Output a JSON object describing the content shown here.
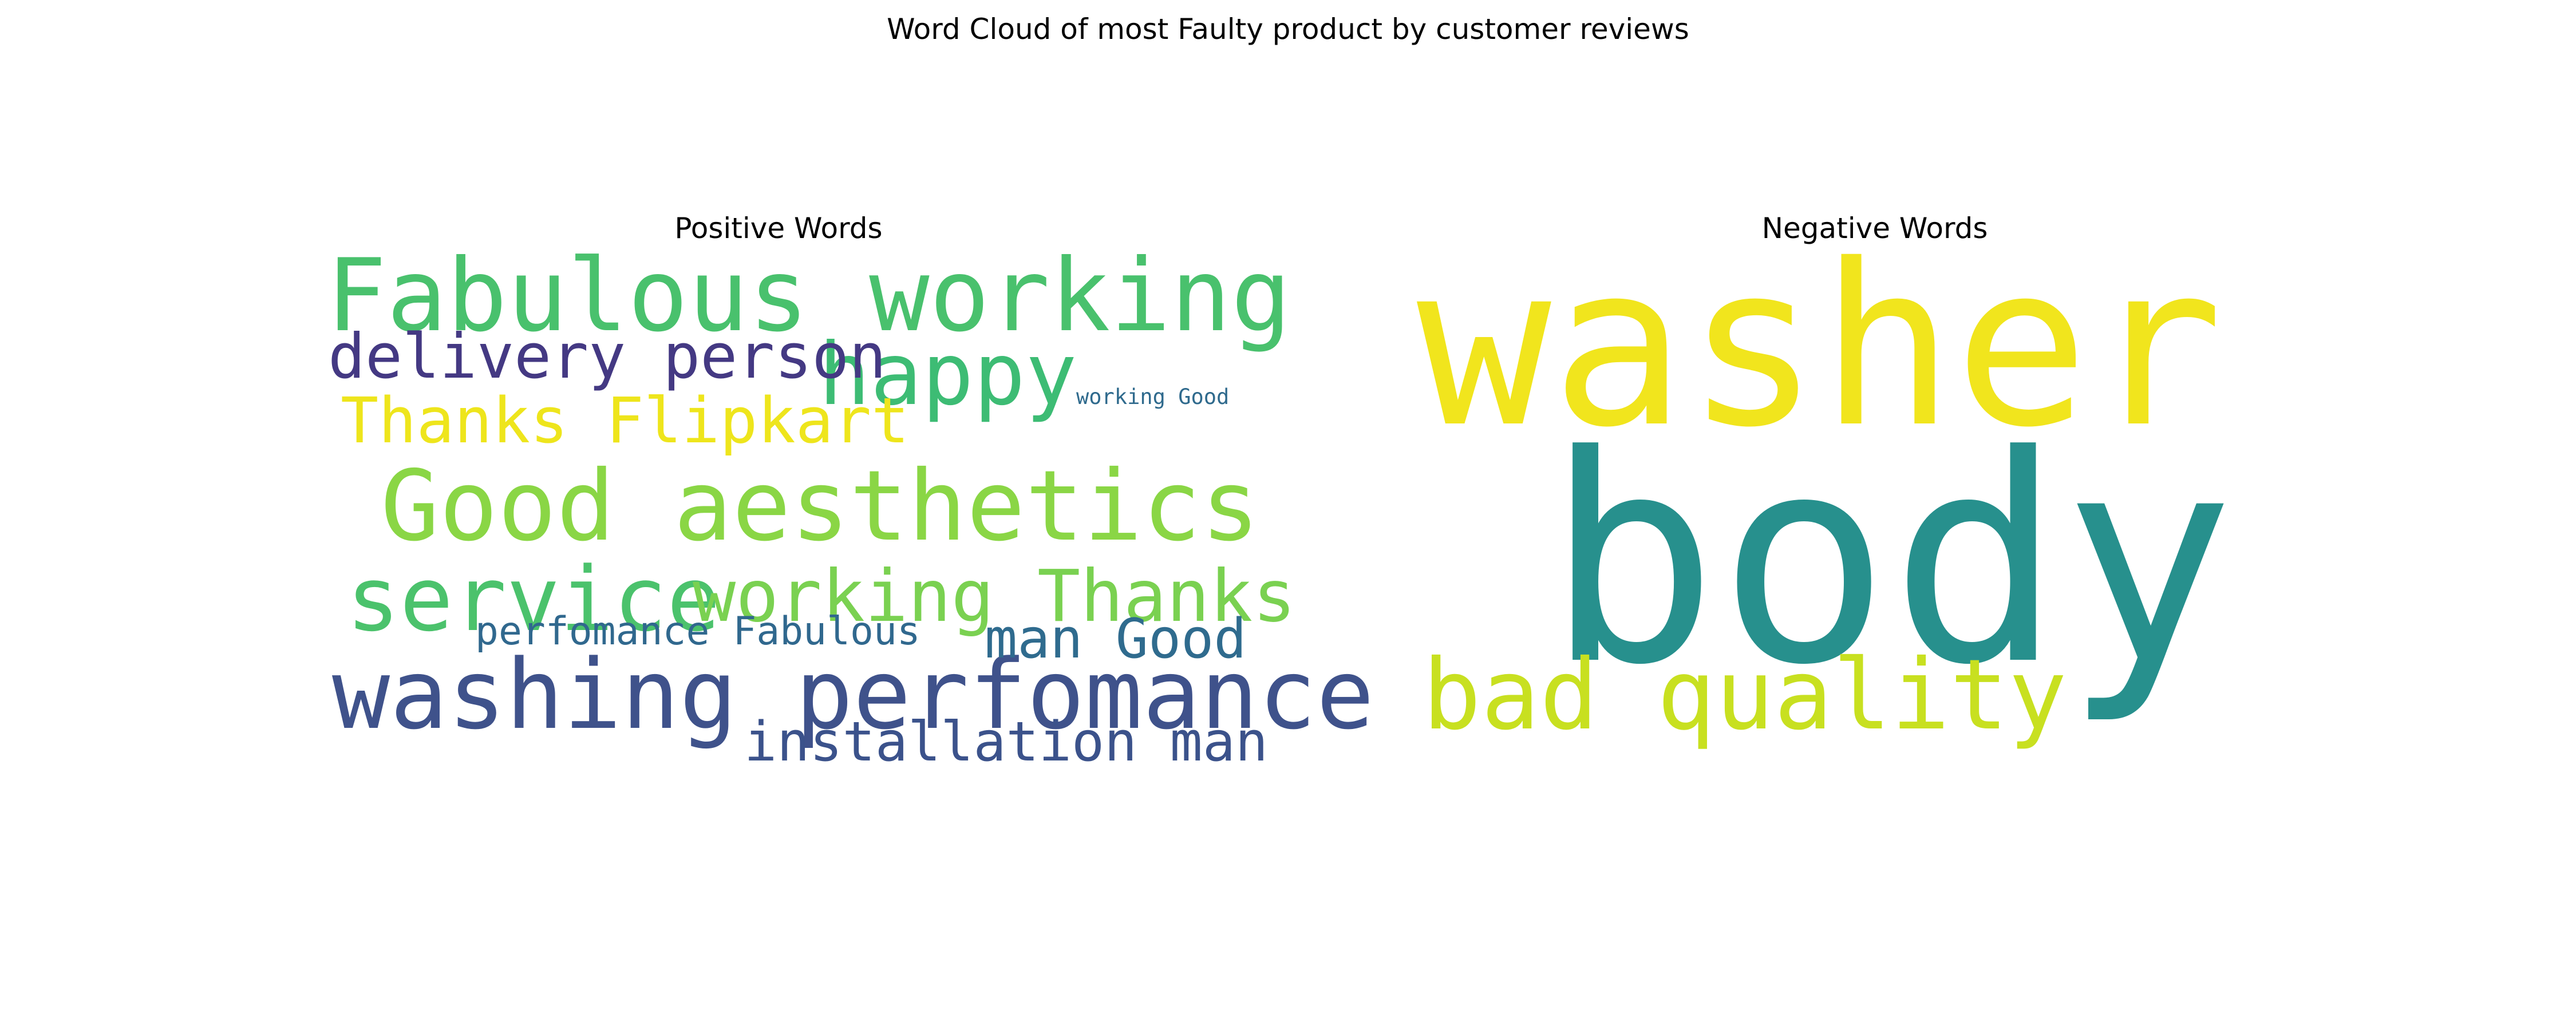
{
  "figure": {
    "title": "Word Cloud of most Faulty product by customer reviews"
  },
  "chart_data": [
    {
      "type": "wordcloud",
      "title": "Positive Words",
      "words": [
        {
          "text": "Fabulous working",
          "color": "#49c16d",
          "weight": 1.0
        },
        {
          "text": "Good aesthetics",
          "color": "#8ad645",
          "weight": 0.98
        },
        {
          "text": "washing perfomance",
          "color": "#3f528b",
          "weight": 0.96
        },
        {
          "text": "service",
          "color": "#4bc26c",
          "weight": 0.9
        },
        {
          "text": "happy",
          "color": "#3dbc74",
          "weight": 0.88
        },
        {
          "text": "working Thanks",
          "color": "#7ad151",
          "weight": 0.74
        },
        {
          "text": "Thanks Flipkart",
          "color": "#eee51c",
          "weight": 0.64
        },
        {
          "text": "delivery person",
          "color": "#443983",
          "weight": 0.64
        },
        {
          "text": "installation man",
          "color": "#3b528b",
          "weight": 0.58
        },
        {
          "text": "man Good",
          "color": "#2f6b8e",
          "weight": 0.58
        },
        {
          "text": "perfomance Fabulous",
          "color": "#30688e",
          "weight": 0.44
        },
        {
          "text": "working Good",
          "color": "#2f6a8d",
          "weight": 0.24
        }
      ]
    },
    {
      "type": "wordcloud",
      "title": "Negative Words",
      "words": [
        {
          "text": "washer",
          "color": "#f1e51d",
          "weight": 1.0
        },
        {
          "text": "body",
          "color": "#27908d",
          "weight": 1.0
        },
        {
          "text": "bad quality",
          "color": "#c8e020",
          "weight": 0.58
        }
      ]
    }
  ]
}
